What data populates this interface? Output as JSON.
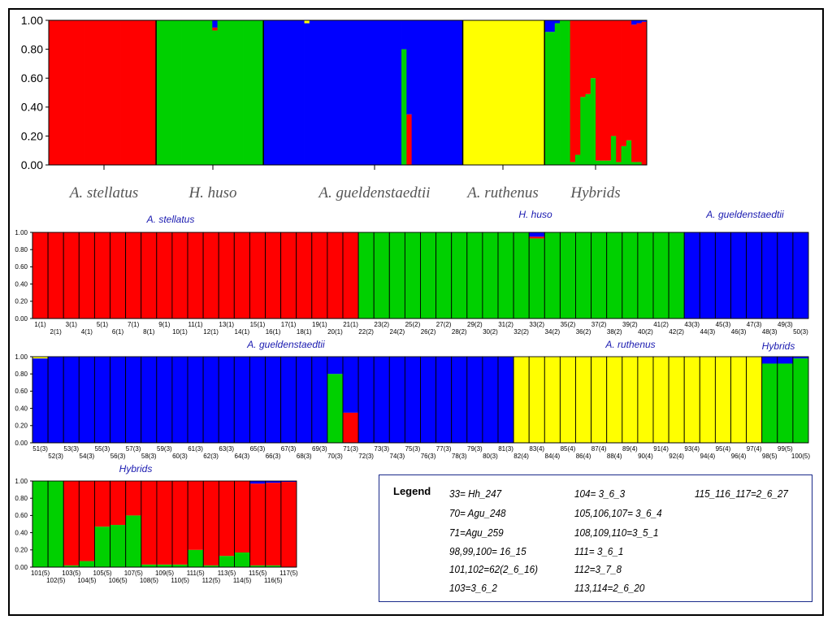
{
  "chart_data": [
    {
      "type": "bar",
      "stacked": true,
      "id": "overview",
      "ylim": [
        0,
        1
      ],
      "yticks": [
        "0.00",
        "0.20",
        "0.40",
        "0.60",
        "0.80",
        "1.00"
      ],
      "group_labels": [
        "A. stellatus",
        "H. huso",
        "A. gueldenstaedtii",
        "A. ruthenus",
        "Hybrids"
      ],
      "cluster_colors": [
        "#00d000",
        "#ff0000",
        "#0000ff",
        "#ffff00"
      ],
      "note": "cluster order bottom-to-top per bar: green, red, blue, yellow; same individuals as detailed panels"
    },
    {
      "type": "bar",
      "stacked": true,
      "id": "panel-1",
      "ylim": [
        0,
        1
      ],
      "yticks": [
        "0.00",
        "0.20",
        "0.40",
        "0.60",
        "0.80",
        "1.00"
      ],
      "group_labels": [
        "A. stellatus",
        "H. huso",
        "A. gueldenstaedtii"
      ],
      "categories": [
        "1(1)",
        "2(1)",
        "3(1)",
        "4(1)",
        "5(1)",
        "6(1)",
        "7(1)",
        "8(1)",
        "9(1)",
        "10(1)",
        "11(1)",
        "12(1)",
        "13(1)",
        "14(1)",
        "15(1)",
        "16(1)",
        "17(1)",
        "18(1)",
        "19(1)",
        "20(1)",
        "21(1)",
        "22(2)",
        "23(2)",
        "24(2)",
        "25(2)",
        "26(2)",
        "27(2)",
        "28(2)",
        "29(2)",
        "30(2)",
        "31(2)",
        "32(2)",
        "33(2)",
        "34(2)",
        "35(2)",
        "36(2)",
        "37(2)",
        "38(2)",
        "39(2)",
        "40(2)",
        "41(2)",
        "42(2)",
        "43(3)",
        "44(3)",
        "45(3)",
        "46(3)",
        "47(3)",
        "48(3)",
        "49(3)",
        "50(3)"
      ],
      "series": [
        {
          "values": [
            0,
            0,
            0,
            0,
            0,
            0,
            0,
            0,
            0,
            0,
            0,
            0,
            0,
            0,
            0,
            0,
            0,
            0,
            0,
            0,
            0,
            1,
            1,
            1,
            1,
            1,
            1,
            1,
            1,
            1,
            1,
            1,
            0.93,
            1,
            1,
            1,
            1,
            1,
            1,
            1,
            1,
            1,
            0,
            0,
            0,
            0,
            0,
            0,
            0,
            0
          ]
        },
        {
          "values": [
            1,
            1,
            1,
            1,
            1,
            1,
            1,
            1,
            1,
            1,
            1,
            1,
            1,
            1,
            1,
            1,
            1,
            1,
            1,
            1,
            1,
            0,
            0,
            0,
            0,
            0,
            0,
            0,
            0,
            0,
            0,
            0,
            0.02,
            0,
            0,
            0,
            0,
            0,
            0,
            0,
            0,
            0,
            0,
            0,
            0,
            0,
            0,
            0,
            0,
            0
          ]
        },
        {
          "values": [
            0,
            0,
            0,
            0,
            0,
            0,
            0,
            0,
            0,
            0,
            0,
            0,
            0,
            0,
            0,
            0,
            0,
            0,
            0,
            0,
            0,
            0,
            0,
            0,
            0,
            0,
            0,
            0,
            0,
            0,
            0,
            0,
            0.05,
            0,
            0,
            0,
            0,
            0,
            0,
            0,
            0,
            0,
            1,
            1,
            1,
            1,
            1,
            1,
            1,
            1
          ]
        },
        {
          "values": [
            0,
            0,
            0,
            0,
            0,
            0,
            0,
            0,
            0,
            0,
            0,
            0,
            0,
            0,
            0,
            0,
            0,
            0,
            0,
            0,
            0,
            0,
            0,
            0,
            0,
            0,
            0,
            0,
            0,
            0,
            0,
            0,
            0,
            0,
            0,
            0,
            0,
            0,
            0,
            0,
            0,
            0,
            0,
            0,
            0,
            0,
            0,
            0,
            0,
            0
          ]
        }
      ]
    },
    {
      "type": "bar",
      "stacked": true,
      "id": "panel-2",
      "ylim": [
        0,
        1
      ],
      "yticks": [
        "0.00",
        "0.20",
        "0.40",
        "0.60",
        "0.80",
        "1.00"
      ],
      "group_labels": [
        "A. gueldenstaedtii",
        "A. ruthenus",
        "Hybrids"
      ],
      "categories": [
        "51(3)",
        "52(3)",
        "53(3)",
        "54(3)",
        "55(3)",
        "56(3)",
        "57(3)",
        "58(3)",
        "59(3)",
        "60(3)",
        "61(3)",
        "62(3)",
        "63(3)",
        "64(3)",
        "65(3)",
        "66(3)",
        "67(3)",
        "68(3)",
        "69(3)",
        "70(3)",
        "71(3)",
        "72(3)",
        "73(3)",
        "74(3)",
        "75(3)",
        "76(3)",
        "77(3)",
        "78(3)",
        "79(3)",
        "80(3)",
        "81(3)",
        "82(4)",
        "83(4)",
        "84(4)",
        "85(4)",
        "86(4)",
        "87(4)",
        "88(4)",
        "89(4)",
        "90(4)",
        "91(4)",
        "92(4)",
        "93(4)",
        "94(4)",
        "95(4)",
        "96(4)",
        "97(4)",
        "98(5)",
        "99(5)",
        "100(5)"
      ],
      "series": [
        {
          "values": [
            0,
            0,
            0,
            0,
            0,
            0,
            0,
            0,
            0,
            0,
            0,
            0,
            0,
            0,
            0,
            0,
            0,
            0,
            0,
            0.8,
            0,
            0,
            0,
            0,
            0,
            0,
            0,
            0,
            0,
            0,
            0,
            0,
            0,
            0,
            0,
            0,
            0,
            0,
            0,
            0,
            0,
            0,
            0,
            0,
            0,
            0,
            0,
            0.92,
            0.92,
            0.98
          ]
        },
        {
          "values": [
            0,
            0,
            0,
            0,
            0,
            0,
            0,
            0,
            0,
            0,
            0,
            0,
            0,
            0,
            0,
            0,
            0,
            0,
            0,
            0,
            0.35,
            0,
            0,
            0,
            0,
            0,
            0,
            0,
            0,
            0,
            0,
            0,
            0,
            0,
            0,
            0,
            0,
            0,
            0,
            0,
            0,
            0,
            0,
            0,
            0,
            0,
            0,
            0,
            0,
            0
          ]
        },
        {
          "values": [
            0.98,
            1,
            1,
            1,
            1,
            1,
            1,
            1,
            1,
            1,
            1,
            1,
            1,
            1,
            1,
            1,
            1,
            1,
            1,
            0.2,
            0.65,
            1,
            1,
            1,
            1,
            1,
            1,
            1,
            1,
            1,
            1,
            0,
            0,
            0,
            0,
            0,
            0,
            0,
            0,
            0,
            0,
            0,
            0,
            0,
            0,
            0,
            0,
            0.08,
            0.08,
            0.02
          ]
        },
        {
          "values": [
            0.02,
            0,
            0,
            0,
            0,
            0,
            0,
            0,
            0,
            0,
            0,
            0,
            0,
            0,
            0,
            0,
            0,
            0,
            0,
            0,
            0,
            0,
            0,
            0,
            0,
            0,
            0,
            0,
            0,
            0,
            0,
            1,
            1,
            1,
            1,
            1,
            1,
            1,
            1,
            1,
            1,
            1,
            1,
            1,
            1,
            1,
            1,
            0,
            0,
            0
          ]
        }
      ]
    },
    {
      "type": "bar",
      "stacked": true,
      "id": "panel-3",
      "ylim": [
        0,
        1
      ],
      "yticks": [
        "0.00",
        "0.20",
        "0.40",
        "0.60",
        "0.80",
        "1.00"
      ],
      "group_labels": [
        "Hybrids"
      ],
      "categories": [
        "101(5)",
        "102(5)",
        "103(5)",
        "104(5)",
        "105(5)",
        "106(5)",
        "107(5)",
        "108(5)",
        "109(5)",
        "110(5)",
        "111(5)",
        "112(5)",
        "113(5)",
        "114(5)",
        "115(5)",
        "116(5)",
        "117(5)"
      ],
      "series": [
        {
          "values": [
            1,
            1,
            0.02,
            0.07,
            0.47,
            0.49,
            0.6,
            0.03,
            0.03,
            0.03,
            0.2,
            0.02,
            0.13,
            0.17,
            0.02,
            0.02,
            0
          ]
        },
        {
          "values": [
            0,
            0,
            0.98,
            0.93,
            0.53,
            0.51,
            0.4,
            0.97,
            0.97,
            0.97,
            0.8,
            0.98,
            0.87,
            0.83,
            0.95,
            0.96,
            0.99
          ]
        },
        {
          "values": [
            0,
            0,
            0,
            0,
            0,
            0,
            0,
            0,
            0,
            0,
            0,
            0,
            0,
            0,
            0.03,
            0.02,
            0.01
          ]
        },
        {
          "values": [
            0,
            0,
            0,
            0,
            0,
            0,
            0,
            0,
            0,
            0,
            0,
            0,
            0,
            0,
            0,
            0,
            0
          ]
        }
      ]
    }
  ],
  "legend": {
    "title": "Legend",
    "entries": [
      "33= Hh_247",
      "70= Agu_248",
      "71=Agu_259",
      "98,99,100= 16_15",
      "101,102=62(2_6_16)",
      "103=3_6_2",
      "104= 3_6_3",
      "105,106,107= 3_6_4",
      "108,109,110=3_5_1",
      "111= 3_6_1",
      "112=3_7_8",
      "113,114=2_6_20",
      "115_116_117=2_6_27"
    ]
  }
}
